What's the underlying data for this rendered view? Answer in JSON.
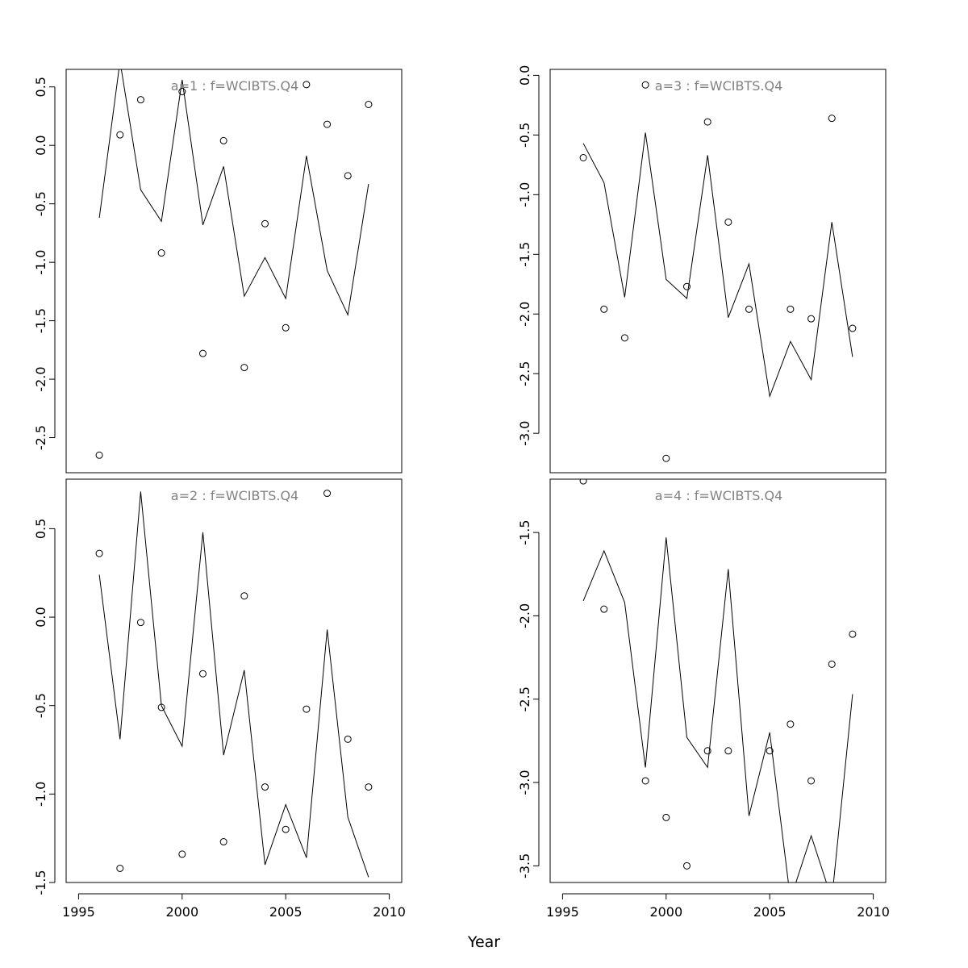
{
  "chart_data": {
    "xlabel": "Year",
    "xlim": [
      1995.5,
      2009.6
    ],
    "x_ticks": [
      1995,
      2000,
      2005,
      2010
    ],
    "panels": [
      {
        "title": "a=1  :  f=WCIBTS.Q4",
        "type": "line+scatter",
        "ylim": [
          -2.8,
          0.65
        ],
        "y_ticks": [
          0.5,
          0.0,
          -0.5,
          -1.0,
          -1.5,
          -2.0,
          -2.5
        ],
        "y_tick_labels": [
          "0.5",
          "0.0",
          "-0.5",
          "-1.0",
          "-1.5",
          "-2.0",
          "-2.5"
        ],
        "x": [
          1996,
          1997,
          1998,
          1999,
          2000,
          2001,
          2002,
          2003,
          2004,
          2005,
          2006,
          2007,
          2008,
          2009
        ],
        "line": [
          -0.62,
          0.72,
          -0.38,
          -0.65,
          0.56,
          -0.68,
          -0.18,
          -1.29,
          -0.96,
          -1.31,
          -0.09,
          -1.07,
          -1.45,
          -0.33
        ],
        "points": [
          -2.65,
          0.09,
          0.39,
          -0.92,
          0.46,
          -1.78,
          0.04,
          -1.9,
          -0.67,
          -1.56,
          0.52,
          0.18,
          -0.26,
          0.35
        ]
      },
      {
        "title": "a=3  :  f=WCIBTS.Q4",
        "type": "line+scatter",
        "ylim": [
          -3.33,
          0.05
        ],
        "y_ticks": [
          0.0,
          -0.5,
          -1.0,
          -1.5,
          -2.0,
          -2.5,
          -3.0
        ],
        "y_tick_labels": [
          "0.0",
          "-0.5",
          "-1.0",
          "-1.5",
          "-2.0",
          "-2.5",
          "-3.0"
        ],
        "x": [
          1996,
          1997,
          1998,
          1999,
          2000,
          2001,
          2002,
          2003,
          2004,
          2005,
          2006,
          2007,
          2008,
          2009
        ],
        "line": [
          -0.57,
          -0.9,
          -1.86,
          -0.48,
          -1.71,
          -1.87,
          -0.67,
          -2.03,
          -1.58,
          -2.69,
          -2.23,
          -2.55,
          -1.23,
          -2.36
        ],
        "points": [
          -0.69,
          -1.96,
          -2.2,
          -0.08,
          -3.21,
          -1.77,
          -0.39,
          -1.23,
          -1.96,
          null,
          -1.96,
          -2.04,
          -0.36,
          -2.12
        ]
      },
      {
        "title": "a=2  :  f=WCIBTS.Q4",
        "type": "line+scatter",
        "ylim": [
          -1.5,
          0.78
        ],
        "y_ticks": [
          0.5,
          0.0,
          -0.5,
          -1.0,
          -1.5
        ],
        "y_tick_labels": [
          "0.5",
          "0.0",
          "-0.5",
          "-1.0",
          "-1.5"
        ],
        "x": [
          1996,
          1997,
          1998,
          1999,
          2000,
          2001,
          2002,
          2003,
          2004,
          2005,
          2006,
          2007,
          2008,
          2009
        ],
        "line": [
          0.24,
          -0.69,
          0.71,
          -0.5,
          -0.73,
          0.48,
          -0.78,
          -0.3,
          -1.4,
          -1.06,
          -1.36,
          -0.07,
          -1.13,
          -1.47
        ],
        "points": [
          0.36,
          -1.42,
          -0.03,
          -0.51,
          -1.34,
          -0.32,
          -1.27,
          0.12,
          -0.96,
          -1.2,
          -0.52,
          0.7,
          -0.69,
          -0.96
        ]
      },
      {
        "title": "a=4  :  f=WCIBTS.Q4",
        "type": "line+scatter",
        "ylim": [
          -3.6,
          -1.18
        ],
        "y_ticks": [
          -1.5,
          -2.0,
          -2.5,
          -3.0,
          -3.5
        ],
        "y_tick_labels": [
          "-1.5",
          "-2.0",
          "-2.5",
          "-3.0",
          "-3.5"
        ],
        "x": [
          1996,
          1997,
          1998,
          1999,
          2000,
          2001,
          2002,
          2003,
          2004,
          2005,
          2006,
          2007,
          2008,
          2009
        ],
        "line": [
          -1.91,
          -1.61,
          -1.92,
          -2.91,
          -1.53,
          -2.73,
          -2.91,
          -1.72,
          -3.2,
          -2.7,
          -3.7,
          -3.32,
          -3.7,
          -2.47
        ],
        "points": [
          -1.19,
          -1.96,
          null,
          -2.99,
          -3.21,
          -3.5,
          -2.81,
          -2.81,
          null,
          -2.81,
          -2.65,
          -2.99,
          -2.29,
          -2.11
        ]
      }
    ]
  }
}
